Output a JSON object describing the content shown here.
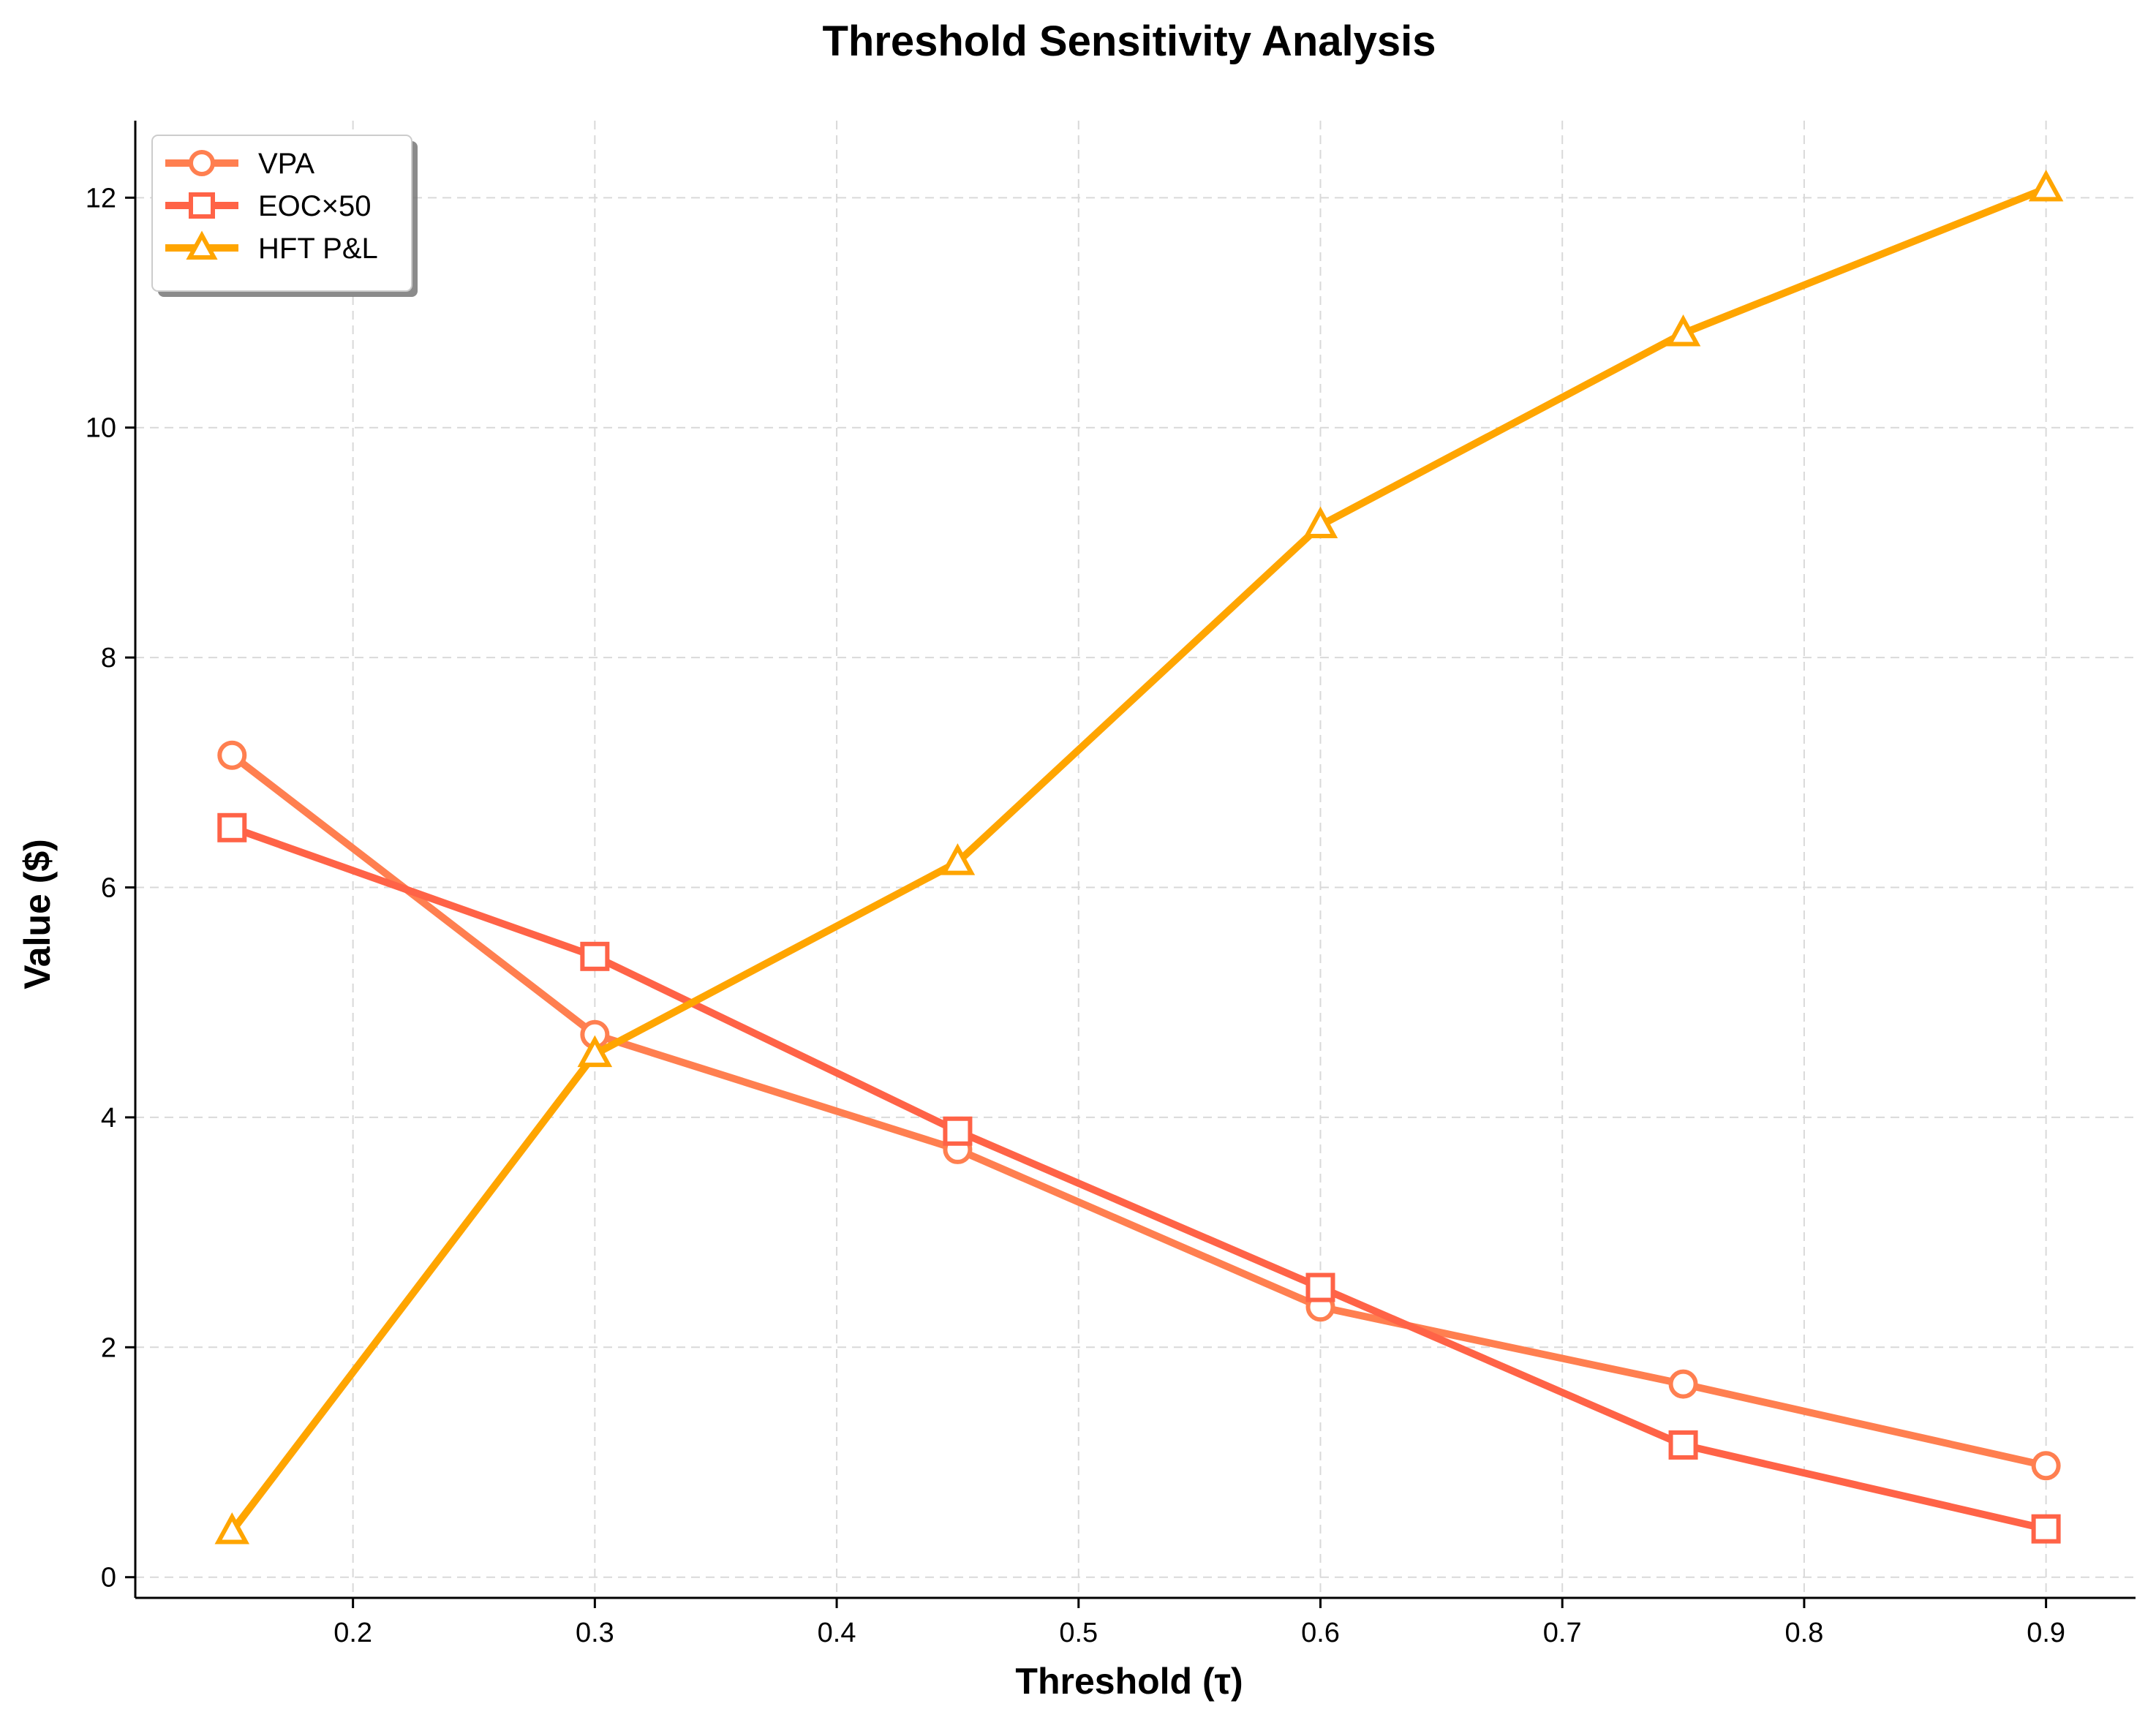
{
  "chart_data": {
    "type": "line",
    "title": "Threshold Sensitivity Analysis",
    "xlabel": "Threshold (τ)",
    "ylabel": "Value ($)",
    "x": [
      0.15,
      0.3,
      0.45,
      0.6,
      0.75,
      0.9
    ],
    "xlim": [
      0.11,
      0.937
    ],
    "ylim": [
      -0.18,
      12.67
    ],
    "xticks": [
      0.2,
      0.3,
      0.4,
      0.5,
      0.6,
      0.7,
      0.8,
      0.9
    ],
    "xtick_labels": [
      "0.2",
      "0.3",
      "0.4",
      "0.5",
      "0.6",
      "0.7",
      "0.8",
      "0.9"
    ],
    "yticks": [
      0,
      2,
      4,
      6,
      8,
      10,
      12
    ],
    "ytick_labels": [
      "0",
      "2",
      "4",
      "6",
      "8",
      "10",
      "12"
    ],
    "grid": true,
    "legend_position": "top-left",
    "series": [
      {
        "name": "VPA",
        "marker": "circle",
        "color": "#FF7F50",
        "values": [
          7.15,
          4.72,
          3.72,
          2.35,
          1.68,
          0.97
        ]
      },
      {
        "name": "EOC×50",
        "marker": "square",
        "color": "#FF6347",
        "values": [
          6.52,
          5.4,
          3.88,
          2.52,
          1.15,
          0.42
        ]
      },
      {
        "name": "HFT P&L",
        "marker": "triangle",
        "color": "#FFA500",
        "values": [
          0.4,
          4.55,
          6.22,
          9.15,
          10.82,
          12.08
        ]
      }
    ]
  }
}
